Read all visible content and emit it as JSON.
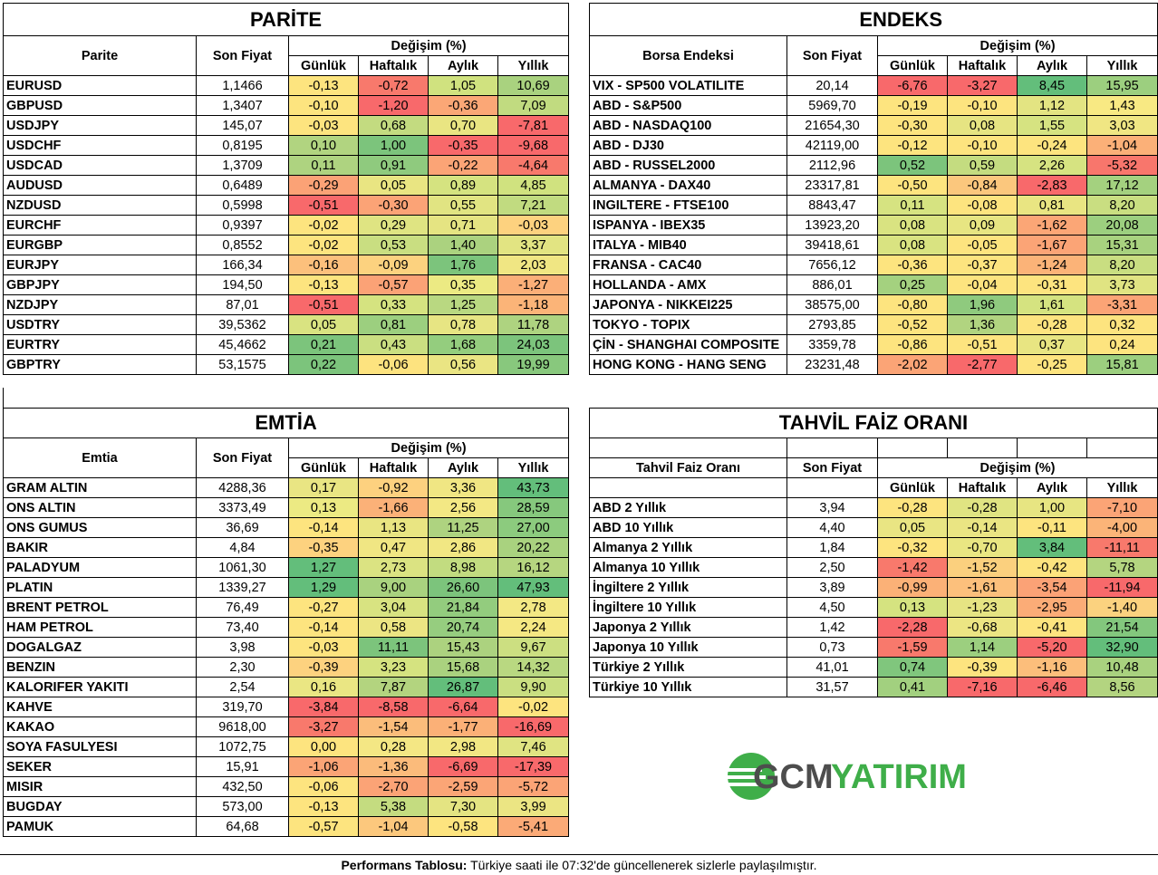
{
  "change_header": "Değişim (%)",
  "period_headers": [
    "Günlük",
    "Haftalık",
    "Aylık",
    "Yıllık"
  ],
  "price_header": "Son Fiyat",
  "parite": {
    "title": "PARİTE",
    "name_header": "Parite",
    "rows": [
      [
        "EURUSD",
        "1,1466",
        "-0,13",
        "-0,72",
        "1,05",
        "10,69"
      ],
      [
        "GBPUSD",
        "1,3407",
        "-0,10",
        "-1,20",
        "-0,36",
        "7,09"
      ],
      [
        "USDJPY",
        "145,07",
        "-0,03",
        "0,68",
        "0,70",
        "-7,81"
      ],
      [
        "USDCHF",
        "0,8195",
        "0,10",
        "1,00",
        "-0,35",
        "-9,68"
      ],
      [
        "USDCAD",
        "1,3709",
        "0,11",
        "0,91",
        "-0,22",
        "-4,64"
      ],
      [
        "AUDUSD",
        "0,6489",
        "-0,29",
        "0,05",
        "0,89",
        "4,85"
      ],
      [
        "NZDUSD",
        "0,5998",
        "-0,51",
        "-0,30",
        "0,55",
        "7,21"
      ],
      [
        "EURCHF",
        "0,9397",
        "-0,02",
        "0,29",
        "0,71",
        "-0,03"
      ],
      [
        "EURGBP",
        "0,8552",
        "-0,02",
        "0,53",
        "1,40",
        "3,37"
      ],
      [
        "EURJPY",
        "166,34",
        "-0,16",
        "-0,09",
        "1,76",
        "2,03"
      ],
      [
        "GBPJPY",
        "194,50",
        "-0,13",
        "-0,57",
        "0,35",
        "-1,27"
      ],
      [
        "NZDJPY",
        "87,01",
        "-0,51",
        "0,33",
        "1,25",
        "-1,18"
      ],
      [
        "USDTRY",
        "39,5362",
        "0,05",
        "0,81",
        "0,78",
        "11,78"
      ],
      [
        "EURTRY",
        "45,4662",
        "0,21",
        "0,43",
        "1,68",
        "24,03"
      ],
      [
        "GBPTRY",
        "53,1575",
        "0,22",
        "-0,06",
        "0,56",
        "19,99"
      ]
    ],
    "colors": [
      [
        "#fde47f",
        "#f8796c",
        "#d0e27f",
        "#a9d27f"
      ],
      [
        "#fde47f",
        "#f8696b",
        "#fba776",
        "#c1db80"
      ],
      [
        "#fde47f",
        "#c3db80",
        "#e9e582",
        "#f8696b"
      ],
      [
        "#b1d480",
        "#7cc47c",
        "#f8696b",
        "#f8696b"
      ],
      [
        "#aed380",
        "#8fca7e",
        "#fba476",
        "#f8796c"
      ],
      [
        "#fba276",
        "#e9e582",
        "#d5e380",
        "#d0e27f"
      ],
      [
        "#f8696b",
        "#fba376",
        "#e1e482",
        "#c1db80"
      ],
      [
        "#fde47f",
        "#dfe482",
        "#e5e482",
        "#fdd27f"
      ],
      [
        "#fde47f",
        "#c9de81",
        "#abd27f",
        "#e2e482"
      ],
      [
        "#fcc07c",
        "#fcd27f",
        "#7cc47c",
        "#f0e683"
      ],
      [
        "#fde47f",
        "#fba276",
        "#ecea83",
        "#fbaf78"
      ],
      [
        "#f8696b",
        "#d5e380",
        "#b9d881",
        "#fbb478"
      ],
      [
        "#d9e381",
        "#9ccf7f",
        "#e7e583",
        "#aed380"
      ],
      [
        "#7cc47c",
        "#cadf81",
        "#94cd7e",
        "#7cc47c"
      ],
      [
        "#7cc47c",
        "#fde37f",
        "#eae583",
        "#88c87d"
      ]
    ]
  },
  "endeks": {
    "title": "ENDEKS",
    "name_header": "Borsa Endeksi",
    "rows": [
      [
        "VIX  - SP500 VOLATILITE",
        "20,14",
        "-6,76",
        "-3,27",
        "8,45",
        "15,95"
      ],
      [
        "ABD - S&P500",
        "5969,70",
        "-0,19",
        "-0,10",
        "1,12",
        "1,43"
      ],
      [
        "ABD - NASDAQ100",
        "21654,30",
        "-0,30",
        "0,08",
        "1,55",
        "3,03"
      ],
      [
        "ABD - DJ30",
        "42119,00",
        "-0,12",
        "-0,10",
        "-0,24",
        "-1,04"
      ],
      [
        "ABD - RUSSEL2000",
        "2112,96",
        "0,52",
        "0,59",
        "2,26",
        "-5,32"
      ],
      [
        "ALMANYA - DAX40",
        "23317,81",
        "-0,50",
        "-0,84",
        "-2,83",
        "17,12"
      ],
      [
        "INGILTERE - FTSE100",
        "8843,47",
        "0,11",
        "-0,08",
        "0,81",
        "8,20"
      ],
      [
        "ISPANYA - IBEX35",
        "13923,20",
        "0,08",
        "0,09",
        "-1,62",
        "20,08"
      ],
      [
        "ITALYA - MIB40",
        "39418,61",
        "0,08",
        "-0,05",
        "-1,67",
        "15,31"
      ],
      [
        "FRANSA - CAC40",
        "7656,12",
        "-0,36",
        "-0,37",
        "-1,24",
        "8,20"
      ],
      [
        "HOLLANDA - AMX",
        "886,01",
        "0,25",
        "-0,04",
        "-0,31",
        "3,73"
      ],
      [
        "JAPONYA - NIKKEI225",
        "38575,00",
        "-0,80",
        "1,96",
        "1,61",
        "-3,31"
      ],
      [
        "TOKYO - TOPIX",
        "2793,85",
        "-0,52",
        "1,36",
        "-0,28",
        "0,32"
      ],
      [
        "ÇİN - SHANGHAI COMPOSITE",
        "3359,78",
        "-0,86",
        "-0,51",
        "0,37",
        "0,24"
      ],
      [
        "HONG KONG - HANG SENG",
        "23231,48",
        "-2,02",
        "-2,77",
        "-0,25",
        "15,81"
      ]
    ],
    "colors": [
      [
        "#f8696b",
        "#f8696b",
        "#63be7b",
        "#9ccf7f"
      ],
      [
        "#fde47f",
        "#fde47f",
        "#e3e482",
        "#f8e983"
      ],
      [
        "#fde47f",
        "#e6e482",
        "#d6e381",
        "#f0e683"
      ],
      [
        "#fde47f",
        "#fde47f",
        "#fde47f",
        "#fbb078"
      ],
      [
        "#7cc47c",
        "#c4dc80",
        "#d6e381",
        "#f8766c"
      ],
      [
        "#fde47f",
        "#fbc77d",
        "#f8696b",
        "#a4d17f"
      ],
      [
        "#d6e381",
        "#fde47f",
        "#e9e582",
        "#c9de81"
      ],
      [
        "#d9e381",
        "#e7e582",
        "#fba676",
        "#9ccf7f"
      ],
      [
        "#d9e381",
        "#fde47f",
        "#fba476",
        "#a8d27f"
      ],
      [
        "#fde47f",
        "#fde47f",
        "#fbb378",
        "#c9de81"
      ],
      [
        "#a4d17f",
        "#fde47f",
        "#fde47f",
        "#e0e482"
      ],
      [
        "#fde47f",
        "#8fca7e",
        "#d5e380",
        "#fba476"
      ],
      [
        "#fde47f",
        "#b1d480",
        "#fde47f",
        "#fde47f"
      ],
      [
        "#fde47f",
        "#fde47f",
        "#e8e582",
        "#fde47f"
      ],
      [
        "#fba476",
        "#f8696b",
        "#fde47f",
        "#9ccf7f"
      ]
    ]
  },
  "emtia": {
    "title": "EMTİA",
    "name_header": "Emtia",
    "rows": [
      [
        "GRAM ALTIN",
        "4288,36",
        "0,17",
        "-0,92",
        "3,36",
        "43,73"
      ],
      [
        "ONS ALTIN",
        "3373,49",
        "0,13",
        "-1,66",
        "2,56",
        "28,59"
      ],
      [
        "ONS GUMUS",
        "36,69",
        "-0,14",
        "1,13",
        "11,25",
        "27,00"
      ],
      [
        "BAKIR",
        "4,84",
        "-0,35",
        "0,47",
        "2,86",
        "20,22"
      ],
      [
        "PALADYUM",
        "1061,30",
        "1,27",
        "2,73",
        "8,98",
        "16,12"
      ],
      [
        "PLATIN",
        "1339,27",
        "1,29",
        "9,00",
        "26,60",
        "47,93"
      ],
      [
        "BRENT PETROL",
        "76,49",
        "-0,27",
        "3,04",
        "21,84",
        "2,78"
      ],
      [
        "HAM PETROL",
        "73,40",
        "-0,14",
        "0,58",
        "20,74",
        "2,24"
      ],
      [
        "DOGALGAZ",
        "3,98",
        "-0,03",
        "11,11",
        "15,43",
        "9,67"
      ],
      [
        "BENZIN",
        "2,30",
        "-0,39",
        "3,23",
        "15,68",
        "14,32"
      ],
      [
        "KALORIFER YAKITI",
        "2,54",
        "0,16",
        "7,87",
        "26,87",
        "9,90"
      ],
      [
        "KAHVE",
        "319,70",
        "-3,84",
        "-8,58",
        "-6,64",
        "-0,02"
      ],
      [
        "KAKAO",
        "9618,00",
        "-3,27",
        "-1,54",
        "-1,77",
        "-16,69"
      ],
      [
        "SOYA FASULYESI",
        "1072,75",
        "0,00",
        "0,28",
        "2,98",
        "7,46"
      ],
      [
        "SEKER",
        "15,91",
        "-1,06",
        "-1,36",
        "-6,69",
        "-17,39"
      ],
      [
        "MISIR",
        "432,50",
        "-0,06",
        "-2,70",
        "-2,59",
        "-5,72"
      ],
      [
        "BUGDAY",
        "573,00",
        "-0,13",
        "5,38",
        "7,30",
        "3,99"
      ],
      [
        "PAMUK",
        "64,68",
        "-0,57",
        "-1,04",
        "-0,58",
        "-5,41"
      ]
    ],
    "colors": [
      [
        "#e9e583",
        "#fdd17f",
        "#f0e683",
        "#63be7b"
      ],
      [
        "#ecea83",
        "#fbb178",
        "#f3e884",
        "#86c87d"
      ],
      [
        "#fde47f",
        "#e9e582",
        "#aed380",
        "#8ccb7e"
      ],
      [
        "#fdd27f",
        "#f0e683",
        "#f1e783",
        "#a9d27f"
      ],
      [
        "#63be7b",
        "#dbe382",
        "#c2dc80",
        "#b6d680"
      ],
      [
        "#63be7b",
        "#a9d27f",
        "#7cc47c",
        "#63be7b"
      ],
      [
        "#fde47f",
        "#d8e381",
        "#93cc7e",
        "#f3e884"
      ],
      [
        "#fde47f",
        "#ece583",
        "#96cd7f",
        "#f5e883"
      ],
      [
        "#fde47f",
        "#7cc47c",
        "#acd27f",
        "#ccdf81"
      ],
      [
        "#fdd27f",
        "#d5e380",
        "#aad27f",
        "#b9d881"
      ],
      [
        "#eae683",
        "#b3d47f",
        "#63be7b",
        "#cadf81"
      ],
      [
        "#f8696b",
        "#f8696b",
        "#f8696b",
        "#fde47f"
      ],
      [
        "#f8796c",
        "#fbbd7b",
        "#fbb077",
        "#f8696b"
      ],
      [
        "#fde47f",
        "#f4e784",
        "#f2e783",
        "#e0e482"
      ],
      [
        "#fba476",
        "#fbbb7b",
        "#f8696b",
        "#f8696b"
      ],
      [
        "#fde47f",
        "#fba376",
        "#fba576",
        "#fba476"
      ],
      [
        "#fde47f",
        "#c4dc80",
        "#e4e482",
        "#ebe583"
      ],
      [
        "#fde47f",
        "#fcc87d",
        "#fde47f",
        "#fbaa77"
      ]
    ]
  },
  "tahvil": {
    "title": "TAHVİL FAİZ ORANI",
    "name_header": "Tahvil Faiz Oranı",
    "rows": [
      [
        "ABD 2 Yıllık",
        "3,94",
        "-0,28",
        "-0,28",
        "1,00",
        "-7,10"
      ],
      [
        "ABD 10 Yıllık",
        "4,40",
        "0,05",
        "-0,14",
        "-0,11",
        "-4,00"
      ],
      [
        "Almanya 2 Yıllık",
        "1,84",
        "-0,32",
        "-0,70",
        "3,84",
        "-11,11"
      ],
      [
        "Almanya 10 Yıllık",
        "2,50",
        "-1,42",
        "-1,52",
        "-0,42",
        "5,78"
      ],
      [
        "İngiltere 2 Yıllık",
        "3,89",
        "-0,99",
        "-1,61",
        "-3,54",
        "-11,94"
      ],
      [
        "İngiltere 10 Yıllık",
        "4,50",
        "0,13",
        "-1,23",
        "-2,95",
        "-1,40"
      ],
      [
        "Japonya 2 Yıllık",
        "1,42",
        "-2,28",
        "-0,68",
        "-0,41",
        "21,54"
      ],
      [
        "Japonya 10 Yıllık",
        "0,73",
        "-1,59",
        "1,14",
        "-5,20",
        "32,90"
      ],
      [
        "Türkiye 2 Yıllık",
        "41,01",
        "0,74",
        "-0,39",
        "-1,16",
        "10,48"
      ],
      [
        "Türkiye 10 Yıllık",
        "31,57",
        "0,41",
        "-7,16",
        "-6,46",
        "8,56"
      ]
    ],
    "colors": [
      [
        "#fde47f",
        "#e0e482",
        "#e7e582",
        "#fba476"
      ],
      [
        "#e9e583",
        "#eae583",
        "#fde47f",
        "#fbb478"
      ],
      [
        "#fde47f",
        "#e9e682",
        "#63be7b",
        "#f8796c"
      ],
      [
        "#f8796c",
        "#fbd07e",
        "#fde47f",
        "#b4d580"
      ],
      [
        "#fbb177",
        "#fcc07c",
        "#fba276",
        "#f8696b"
      ],
      [
        "#d5e380",
        "#e6e483",
        "#fbac77",
        "#fbd27f"
      ],
      [
        "#f8696b",
        "#ece583",
        "#fde47f",
        "#83c77d"
      ],
      [
        "#f8796c",
        "#9ccf7f",
        "#f8696b",
        "#63be7b"
      ],
      [
        "#80c67d",
        "#fde47f",
        "#fcbe7b",
        "#a9d27f"
      ],
      [
        "#a2d07f",
        "#f8696b",
        "#f8696b",
        "#b3d480"
      ]
    ]
  },
  "logo": {
    "part1": "GCM",
    "part2": "YATIRIM",
    "color1": "#4d4d4d",
    "color2": "#3fae49"
  },
  "footer": {
    "bold": "Performans Tablosu:",
    "text": " Türkiye saati ile 07:32'de güncellenerek sizlerle paylaşılmıştır."
  }
}
